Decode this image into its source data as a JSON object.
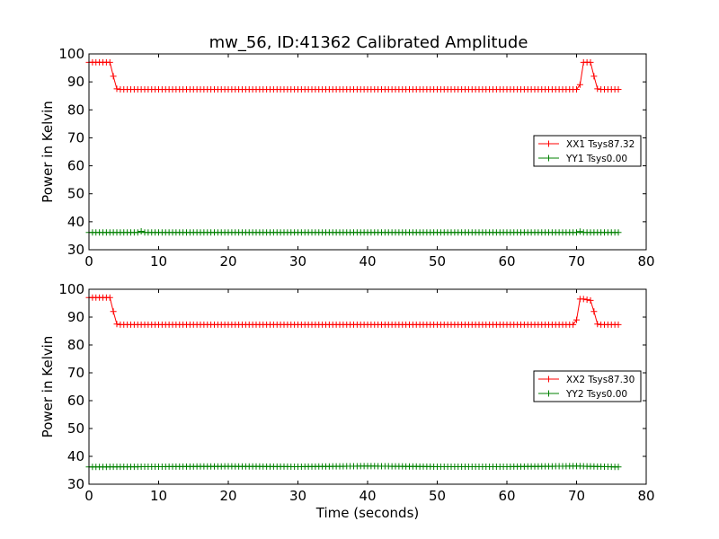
{
  "title": "mw_56, ID:41362 Calibrated Amplitude",
  "chart_data": [
    {
      "type": "line",
      "xlabel": "",
      "ylabel": "Power in Kelvin",
      "xlim": [
        0,
        80
      ],
      "ylim": [
        30,
        100
      ],
      "xticks": [
        0,
        10,
        20,
        30,
        40,
        50,
        60,
        70,
        80
      ],
      "yticks": [
        30,
        40,
        50,
        60,
        70,
        80,
        90,
        100
      ],
      "legend_position": "center-right",
      "marker": "+",
      "series": [
        {
          "name": "XX1 Tsys87.32",
          "color": "#ff0000",
          "x": [
            0,
            3,
            3.5,
            4,
            4.5,
            70,
            70.5,
            71,
            72,
            72.5,
            73,
            73.5,
            76
          ],
          "y": [
            97,
            97,
            92,
            87.5,
            87.3,
            87.3,
            89,
            97,
            97,
            92,
            87.5,
            87.3,
            87.3
          ]
        },
        {
          "name": "YY1 Tsys0.00",
          "color": "#008000",
          "x": [
            0,
            7,
            7.5,
            8,
            70,
            70.5,
            71,
            76
          ],
          "y": [
            36.2,
            36.2,
            36.6,
            36.2,
            36.2,
            36.5,
            36.2,
            36.2
          ]
        }
      ]
    },
    {
      "type": "line",
      "xlabel": "Time (seconds)",
      "ylabel": "Power in Kelvin",
      "xlim": [
        0,
        80
      ],
      "ylim": [
        30,
        100
      ],
      "xticks": [
        0,
        10,
        20,
        30,
        40,
        50,
        60,
        70,
        80
      ],
      "yticks": [
        30,
        40,
        50,
        60,
        70,
        80,
        90,
        100
      ],
      "legend_position": "center-right",
      "marker": "+",
      "series": [
        {
          "name": "XX2 Tsys87.30",
          "color": "#ff0000",
          "x": [
            0,
            3,
            3.5,
            4,
            4.5,
            69.5,
            70,
            70.5,
            71,
            72,
            72.5,
            73,
            73.5,
            76
          ],
          "y": [
            97,
            97,
            92,
            87.5,
            87.3,
            87.3,
            89,
            96.5,
            96.5,
            96,
            92,
            87.5,
            87.3,
            87.3
          ]
        },
        {
          "name": "YY2 Tsys0.00",
          "color": "#008000",
          "x": [
            0,
            10,
            20,
            30,
            40,
            50,
            60,
            70,
            76
          ],
          "y": [
            36.2,
            36.3,
            36.4,
            36.3,
            36.5,
            36.3,
            36.3,
            36.5,
            36.2
          ]
        }
      ]
    }
  ]
}
